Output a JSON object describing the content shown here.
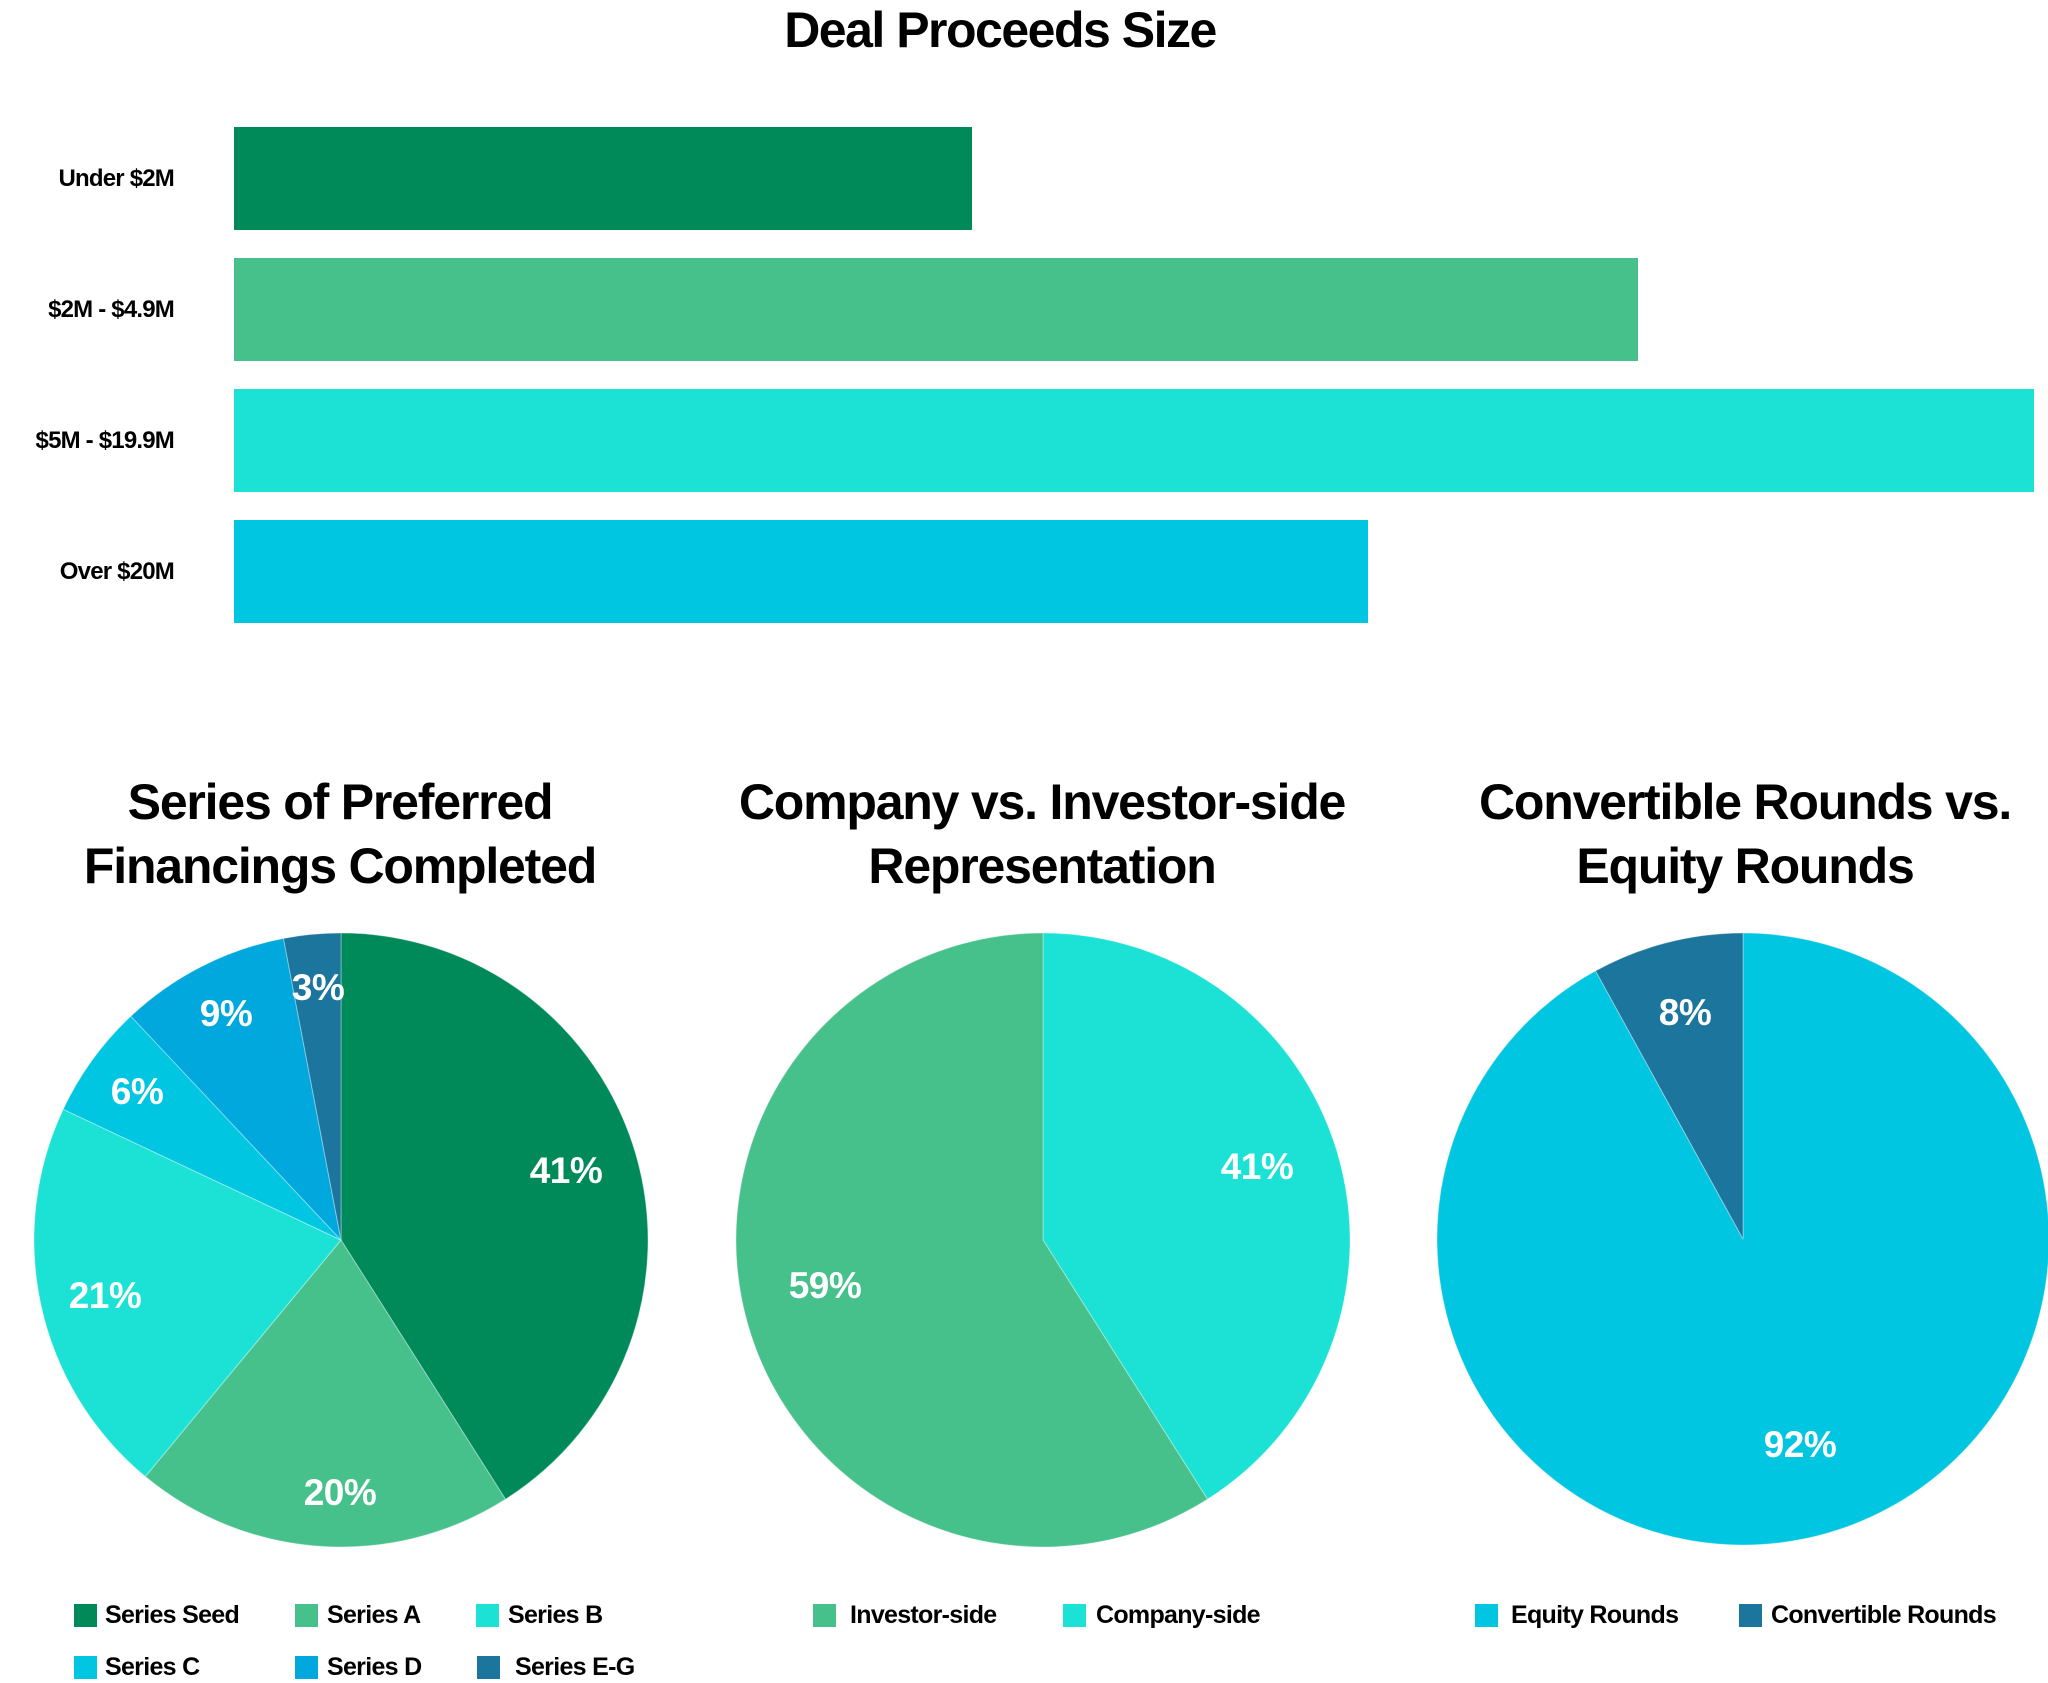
{
  "chart_data": [
    {
      "type": "bar",
      "orientation": "horizontal",
      "title": "Deal Proceeds Size",
      "categories": [
        "Under $2M",
        "$2M - $4.9M",
        "$5M - $19.9M",
        "Over $20M"
      ],
      "values": [
        41,
        78,
        100,
        63
      ],
      "value_note": "relative bar lengths (% of longest bar); no axis or data labels shown",
      "colors": [
        "#008a5a",
        "#47c18c",
        "#1ce2d6",
        "#00c6e2"
      ],
      "xlabel": "",
      "ylabel": "",
      "grid": false,
      "legend": false
    },
    {
      "type": "pie",
      "title": "Series of Preferred Financings Completed",
      "categories": [
        "Series Seed",
        "Series A",
        "Series B",
        "Series C",
        "Series D",
        "Series E-G"
      ],
      "values": [
        41,
        20,
        21,
        6,
        9,
        3
      ],
      "labels": [
        "41%",
        "20%",
        "21%",
        "6%",
        "9%",
        "3%"
      ],
      "colors": [
        "#008a5a",
        "#47c18c",
        "#1ce2d6",
        "#00c6e2",
        "#00a8de",
        "#1c759d"
      ],
      "legend_position": "bottom"
    },
    {
      "type": "pie",
      "title": "Company vs. Investor-side Representation",
      "categories": [
        "Company-side",
        "Investor-side"
      ],
      "values": [
        41,
        59
      ],
      "labels": [
        "41%",
        "59%"
      ],
      "colors": [
        "#1ce2d6",
        "#47c18c"
      ],
      "legend_order": [
        "Investor-side",
        "Company-side"
      ],
      "legend_position": "bottom"
    },
    {
      "type": "pie",
      "title": "Convertible Rounds vs. Equity Rounds",
      "categories": [
        "Equity Rounds",
        "Convertible Rounds"
      ],
      "values": [
        92,
        8
      ],
      "labels": [
        "92%",
        "8%"
      ],
      "colors": [
        "#00c6e2",
        "#1c759d"
      ],
      "legend_position": "bottom"
    }
  ],
  "bar_chart": {
    "title": "Deal Proceeds Size",
    "rows": [
      {
        "label": "Under $2M",
        "rel": 41,
        "color": "#008a5a"
      },
      {
        "label": "$2M - $4.9M",
        "rel": 78,
        "color": "#47c18c"
      },
      {
        "label": "$5M - $19.9M",
        "rel": 100,
        "color": "#1ce2d6"
      },
      {
        "label": "Over $20M",
        "rel": 63,
        "color": "#00c6e2"
      }
    ]
  },
  "pies": [
    {
      "title_line1": "Series of Preferred",
      "title_line2": "Financings Completed",
      "slices": [
        {
          "name": "Series Seed",
          "value": 41,
          "label": "41%",
          "color": "#008a5a"
        },
        {
          "name": "Series A",
          "value": 20,
          "label": "20%",
          "color": "#47c18c"
        },
        {
          "name": "Series B",
          "value": 21,
          "label": "21%",
          "color": "#1ce2d6"
        },
        {
          "name": "Series C",
          "value": 6,
          "label": "6%",
          "color": "#00c6e2"
        },
        {
          "name": "Series D",
          "value": 9,
          "label": "9%",
          "color": "#00a8de"
        },
        {
          "name": "Series E-G",
          "value": 3,
          "label": "3%",
          "color": "#1c759d"
        }
      ],
      "legend": [
        {
          "label": "Series Seed",
          "color": "#008a5a"
        },
        {
          "label": "Series A",
          "color": "#47c18c"
        },
        {
          "label": "Series B",
          "color": "#1ce2d6"
        },
        {
          "label": "Series C",
          "color": "#00c6e2"
        },
        {
          "label": "Series D",
          "color": "#00a8de"
        },
        {
          "label": "Series E-G",
          "color": "#1c759d"
        }
      ]
    },
    {
      "title_line1": "Company vs. Investor-side",
      "title_line2": "Representation",
      "slices": [
        {
          "name": "Company-side",
          "value": 41,
          "label": "41%",
          "color": "#1ce2d6"
        },
        {
          "name": "Investor-side",
          "value": 59,
          "label": "59%",
          "color": "#47c18c"
        }
      ],
      "legend": [
        {
          "label": "Investor-side",
          "color": "#47c18c"
        },
        {
          "label": "Company-side",
          "color": "#1ce2d6"
        }
      ]
    },
    {
      "title_line1": "Convertible Rounds vs.",
      "title_line2": "Equity Rounds",
      "slices": [
        {
          "name": "Equity Rounds",
          "value": 92,
          "label": "92%",
          "color": "#00c6e2"
        },
        {
          "name": "Convertible Rounds",
          "value": 8,
          "label": "8%",
          "color": "#1c759d"
        }
      ],
      "legend": [
        {
          "label": "Equity Rounds",
          "color": "#00c6e2"
        },
        {
          "label": "Convertible Rounds",
          "color": "#1c759d"
        }
      ]
    }
  ]
}
